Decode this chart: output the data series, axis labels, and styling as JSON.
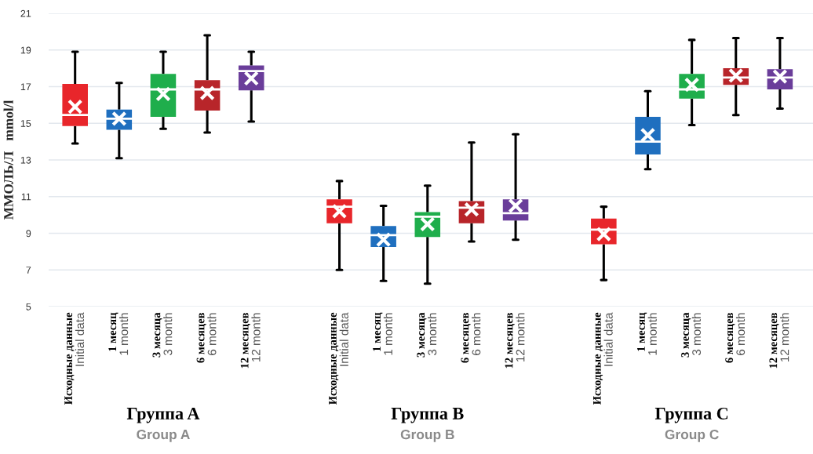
{
  "chart_data": {
    "type": "box",
    "ylabel": "ММОЛЬ/Л   mmol/l",
    "categories": [
      "Исходные данные\nInitial data",
      "1 месяц\n1 month",
      "3 месяца\n3 month",
      "6 месяцев\n6 month",
      "12 месяцев\n12 month",
      null,
      "Исходные данные\nInitial data",
      "1 месяц\n1 month",
      "3 месяца\n3 month",
      "6 месяцев\n6 month",
      "12 месяцев\n12 month",
      null,
      "Исходные данные\nInitial data",
      "1 месяц\n1 month",
      "3 месяца\n3 month",
      "6 месяцев\n6 month",
      "12 месяцев\n12 month"
    ],
    "colors": [
      "#e8262b",
      "#1f6fbf",
      "#1fae4c",
      "#b8252a",
      "#6a3d9a",
      null,
      "#e8262b",
      "#1f6fbf",
      "#1fae4c",
      "#b8252a",
      "#6a3d9a",
      null,
      "#e8262b",
      "#1f6fbf",
      "#1fae4c",
      "#b8252a",
      "#6a3d9a"
    ],
    "boxes": [
      {
        "low": 13.9,
        "q1": 14.85,
        "median": 15.45,
        "q3": 17.15,
        "high": 18.9,
        "mean": 15.9
      },
      {
        "low": 13.1,
        "q1": 14.65,
        "median": 15.25,
        "q3": 15.75,
        "high": 17.2,
        "mean": 15.25
      },
      {
        "low": 14.7,
        "q1": 15.35,
        "median": 16.85,
        "q3": 17.7,
        "high": 18.9,
        "mean": 16.6
      },
      {
        "low": 14.5,
        "q1": 15.7,
        "median": 16.85,
        "q3": 17.35,
        "high": 19.8,
        "mean": 16.65
      },
      {
        "low": 15.1,
        "q1": 16.8,
        "median": 17.85,
        "q3": 18.15,
        "high": 18.9,
        "mean": 17.45
      },
      null,
      {
        "low": 7.0,
        "q1": 9.55,
        "median": 10.45,
        "q3": 10.85,
        "high": 11.85,
        "mean": 10.2
      },
      {
        "low": 6.4,
        "q1": 8.25,
        "median": 8.9,
        "q3": 9.4,
        "high": 10.5,
        "mean": 8.65
      },
      {
        "low": 6.25,
        "q1": 8.8,
        "median": 9.9,
        "q3": 10.15,
        "high": 11.6,
        "mean": 9.5
      },
      {
        "low": 8.55,
        "q1": 9.55,
        "median": 10.4,
        "q3": 10.75,
        "high": 13.95,
        "mean": 10.3
      },
      {
        "low": 8.65,
        "q1": 9.7,
        "median": 10.1,
        "q3": 10.85,
        "high": 14.4,
        "mean": 10.5
      },
      null,
      {
        "low": 6.45,
        "q1": 8.4,
        "median": 9.2,
        "q3": 9.8,
        "high": 10.45,
        "mean": 8.95
      },
      {
        "low": 12.5,
        "q1": 13.3,
        "median": 14.0,
        "q3": 15.35,
        "high": 16.75,
        "mean": 14.35
      },
      {
        "low": 14.9,
        "q1": 16.35,
        "median": 16.85,
        "q3": 17.7,
        "high": 19.55,
        "mean": 17.1
      },
      {
        "low": 15.45,
        "q1": 17.1,
        "median": 17.5,
        "q3": 18.0,
        "high": 19.65,
        "mean": 17.6
      },
      {
        "low": 15.8,
        "q1": 16.85,
        "median": 17.5,
        "q3": 17.95,
        "high": 19.65,
        "mean": 17.55
      }
    ],
    "annotations": [
      "Группа A\nGroup A",
      "Группа B\nGroup B",
      "Группа C\nGroup C"
    ],
    "ylim": [
      5,
      21
    ],
    "yticks": [
      5,
      7,
      9,
      11,
      13,
      15,
      17,
      19,
      21
    ],
    "grid": "y"
  }
}
